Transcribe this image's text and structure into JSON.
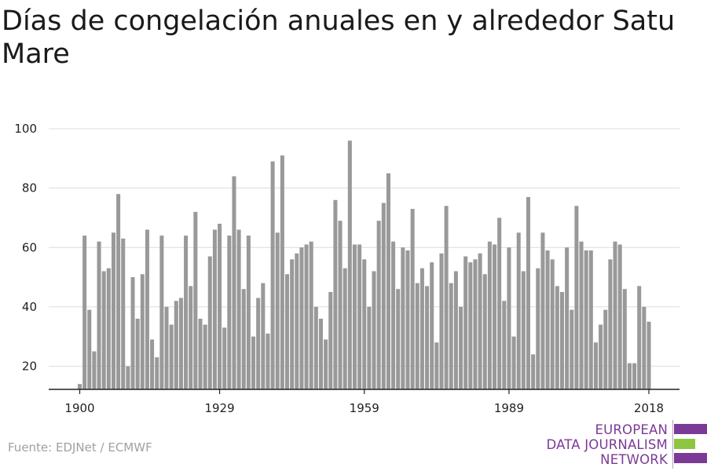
{
  "chart_data": {
    "type": "bar",
    "title": "Días de congelación anuales en y alrededor Satu Mare",
    "xlabel": "",
    "ylabel": "",
    "x_start": 1900,
    "x_end": 2020,
    "xticks": [
      1900,
      1929,
      1959,
      1989,
      2018
    ],
    "yticks": [
      20,
      40,
      60,
      80,
      100
    ],
    "ylim": [
      12,
      100
    ],
    "grid": true,
    "bar_color": "#999999",
    "values": [
      14,
      64,
      39,
      25,
      62,
      52,
      53,
      65,
      78,
      63,
      20,
      50,
      36,
      51,
      66,
      29,
      23,
      64,
      40,
      34,
      42,
      43,
      64,
      47,
      72,
      36,
      34,
      57,
      66,
      68,
      33,
      64,
      84,
      66,
      46,
      64,
      30,
      43,
      48,
      31,
      89,
      65,
      91,
      51,
      56,
      58,
      60,
      61,
      62,
      40,
      36,
      29,
      45,
      76,
      69,
      53,
      96,
      61,
      61,
      56,
      40,
      52,
      69,
      75,
      85,
      62,
      46,
      60,
      59,
      73,
      48,
      53,
      47,
      55,
      28,
      58,
      74,
      48,
      52,
      40,
      57,
      55,
      56,
      58,
      51,
      62,
      61,
      70,
      42,
      60,
      30,
      65,
      52,
      77,
      24,
      53,
      65,
      59,
      56,
      47,
      45,
      60,
      39,
      74,
      62,
      59,
      59,
      28,
      34,
      39,
      56,
      62,
      61,
      46,
      21,
      21,
      47,
      40,
      35
    ]
  },
  "source": "Fuente: EDJNet / ECMWF",
  "logo": {
    "line1": "EUROPEAN",
    "line2": "DATA JOURNALISM",
    "line3": "NETWORK",
    "purple": "#7b3a96",
    "green": "#8dc63f"
  }
}
